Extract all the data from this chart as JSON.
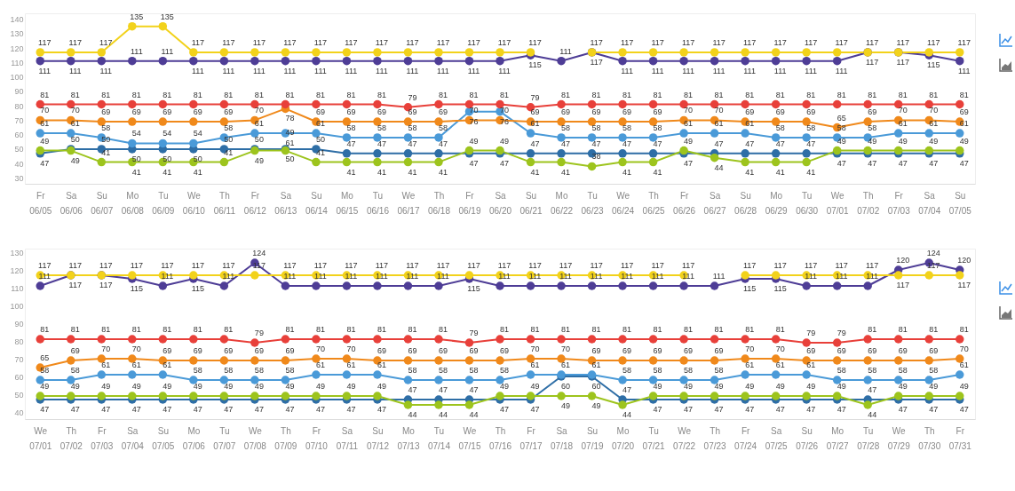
{
  "chart_data": [
    {
      "type": "line",
      "marker": "circle",
      "data_labels": true,
      "ylim": [
        26,
        144
      ],
      "yticks": [
        30,
        40,
        50,
        60,
        70,
        80,
        90,
        100,
        110,
        120,
        130,
        140
      ],
      "categories": [
        "Fr 06/05",
        "Sa 06/06",
        "Su 06/07",
        "Mo 06/08",
        "Tu 06/09",
        "We 06/10",
        "Th 06/11",
        "Fr 06/12",
        "Sa 06/13",
        "Su 06/14",
        "Mo 06/15",
        "Tu 06/16",
        "We 06/17",
        "Th 06/18",
        "Fr 06/19",
        "Sa 06/20",
        "Su 06/21",
        "Mo 06/22",
        "Tu 06/23",
        "We 06/24",
        "Th 06/25",
        "Fr 06/26",
        "Sa 06/27",
        "Su 06/28",
        "Mo 06/29",
        "Tu 06/30",
        "We 07/01",
        "Th 07/02",
        "Fr 07/03",
        "Sa 07/04",
        "Su 07/05"
      ],
      "series": [
        {
          "color": "#2e6ea6",
          "values": [
            47,
            50,
            50,
            50,
            50,
            50,
            50,
            50,
            50,
            50,
            47,
            47,
            47,
            47,
            47,
            47,
            47,
            47,
            47,
            47,
            47,
            47,
            47,
            47,
            47,
            47,
            47,
            47,
            47,
            47,
            47
          ]
        },
        {
          "color": "#9dc41d",
          "values": [
            49,
            49,
            41,
            41,
            41,
            41,
            41,
            49,
            49,
            41,
            41,
            41,
            41,
            41,
            49,
            49,
            41,
            41,
            38,
            41,
            41,
            49,
            44,
            41,
            41,
            41,
            49,
            49,
            49,
            49,
            49
          ]
        },
        {
          "color": "#4a9ad8",
          "values": [
            61,
            61,
            58,
            54,
            54,
            54,
            58,
            61,
            61,
            61,
            58,
            58,
            58,
            58,
            76,
            76,
            61,
            58,
            58,
            58,
            58,
            61,
            61,
            61,
            58,
            58,
            58,
            58,
            61,
            61,
            61
          ]
        },
        {
          "color": "#f0891b",
          "values": [
            70,
            70,
            69,
            69,
            69,
            69,
            69,
            70,
            78,
            69,
            69,
            69,
            69,
            69,
            70,
            70,
            69,
            69,
            69,
            69,
            69,
            70,
            70,
            69,
            69,
            69,
            65,
            69,
            70,
            70,
            69
          ]
        },
        {
          "color": "#e8403a",
          "values": [
            81,
            81,
            81,
            81,
            81,
            81,
            81,
            81,
            81,
            81,
            81,
            81,
            79,
            81,
            81,
            81,
            79,
            81,
            81,
            81,
            81,
            81,
            81,
            81,
            81,
            81,
            81,
            81,
            81,
            81,
            81
          ]
        },
        {
          "color": "#4e3d96",
          "values": [
            111,
            111,
            111,
            111,
            111,
            111,
            111,
            111,
            111,
            111,
            111,
            111,
            111,
            111,
            111,
            111,
            115,
            111,
            117,
            111,
            111,
            111,
            111,
            111,
            111,
            111,
            111,
            117,
            117,
            115,
            111
          ]
        },
        {
          "color": "#f2d21b",
          "values": [
            117,
            117,
            117,
            135,
            135,
            117,
            117,
            117,
            117,
            117,
            117,
            117,
            117,
            117,
            117,
            117,
            117,
            null,
            117,
            117,
            117,
            117,
            117,
            117,
            117,
            117,
            117,
            117,
            117,
            117,
            117
          ]
        }
      ]
    },
    {
      "type": "line",
      "marker": "circle",
      "data_labels": true,
      "ylim": [
        36,
        132
      ],
      "yticks": [
        40,
        50,
        60,
        70,
        80,
        90,
        100,
        110,
        120,
        130
      ],
      "categories": [
        "We 07/01",
        "Th 07/02",
        "Fr 07/03",
        "Sa 07/04",
        "Su 07/05",
        "Mo 07/06",
        "Tu 07/07",
        "We 07/08",
        "Th 07/09",
        "Fr 07/10",
        "Sa 07/11",
        "Su 07/12",
        "Mo 07/13",
        "Tu 07/14",
        "We 07/15",
        "Th 07/16",
        "Fr 07/17",
        "Sa 07/18",
        "Su 07/19",
        "Mo 07/20",
        "Tu 07/21",
        "We 07/22",
        "Th 07/23",
        "Fr 07/24",
        "Sa 07/25",
        "Su 07/26",
        "Mo 07/27",
        "Tu 07/28",
        "We 07/29",
        "Th 07/30",
        "Fr 07/31"
      ],
      "series": [
        {
          "color": "#2e6ea6",
          "values": [
            47,
            47,
            47,
            47,
            47,
            47,
            47,
            47,
            47,
            47,
            47,
            47,
            47,
            47,
            47,
            47,
            47,
            60,
            60,
            47,
            47,
            47,
            47,
            47,
            47,
            47,
            47,
            47,
            47,
            47,
            47
          ]
        },
        {
          "color": "#9dc41d",
          "values": [
            49,
            49,
            49,
            49,
            49,
            49,
            49,
            49,
            49,
            49,
            49,
            49,
            44,
            44,
            44,
            49,
            49,
            49,
            49,
            44,
            49,
            49,
            49,
            49,
            49,
            49,
            49,
            44,
            49,
            49,
            49
          ]
        },
        {
          "color": "#4a9ad8",
          "values": [
            58,
            58,
            61,
            61,
            61,
            58,
            58,
            58,
            58,
            61,
            61,
            61,
            58,
            58,
            58,
            58,
            61,
            61,
            61,
            58,
            58,
            58,
            58,
            61,
            61,
            61,
            58,
            58,
            58,
            58,
            61
          ]
        },
        {
          "color": "#f0891b",
          "values": [
            65,
            69,
            70,
            70,
            69,
            69,
            69,
            69,
            69,
            70,
            70,
            69,
            69,
            69,
            69,
            69,
            70,
            70,
            69,
            69,
            69,
            69,
            69,
            70,
            70,
            69,
            69,
            69,
            69,
            69,
            70
          ]
        },
        {
          "color": "#e8403a",
          "values": [
            81,
            81,
            81,
            81,
            81,
            81,
            81,
            79,
            81,
            81,
            81,
            81,
            81,
            81,
            79,
            81,
            81,
            81,
            81,
            81,
            81,
            81,
            81,
            81,
            81,
            79,
            79,
            81,
            81,
            81,
            81
          ]
        },
        {
          "color": "#4e3d96",
          "values": [
            111,
            117,
            117,
            115,
            111,
            115,
            111,
            124,
            111,
            111,
            111,
            111,
            111,
            111,
            115,
            111,
            111,
            111,
            111,
            111,
            111,
            111,
            111,
            115,
            115,
            111,
            111,
            111,
            120,
            124,
            120
          ]
        },
        {
          "color": "#f2d21b",
          "values": [
            117,
            117,
            117,
            117,
            117,
            117,
            117,
            117,
            117,
            117,
            117,
            117,
            117,
            117,
            117,
            117,
            117,
            117,
            117,
            117,
            117,
            117,
            null,
            117,
            117,
            117,
            117,
            117,
            117,
            117,
            117
          ]
        }
      ]
    }
  ]
}
